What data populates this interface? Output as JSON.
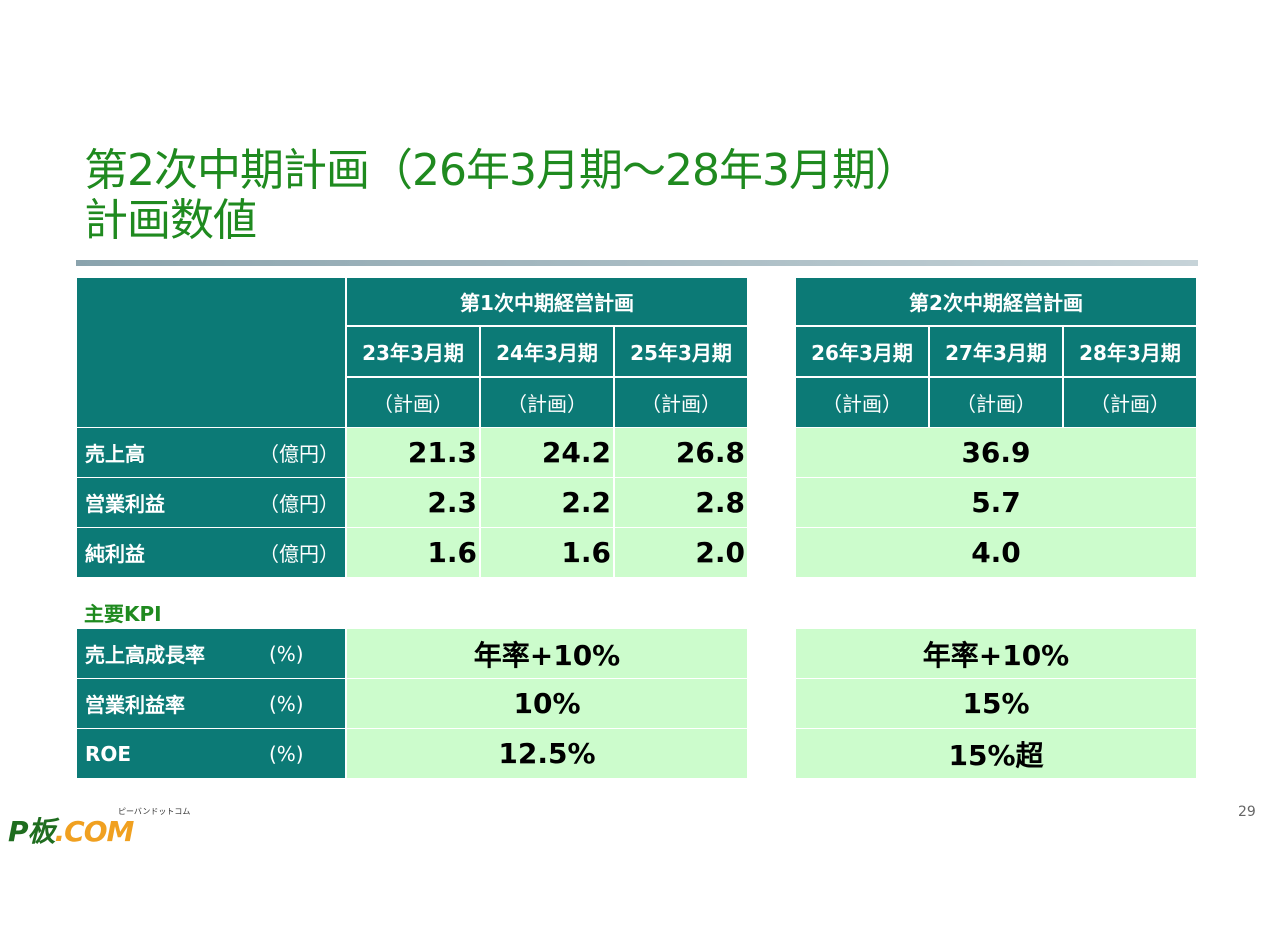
{
  "title": {
    "line1": "第2次中期計画（26年3月期～28年3月期）",
    "line2": "計画数値"
  },
  "plan1": {
    "name": "第1次中期経営計画",
    "periods": [
      "23年3月期",
      "24年3月期",
      "25年3月期"
    ],
    "notes": [
      "（計画）",
      "（計画）",
      "（計画）"
    ]
  },
  "plan2": {
    "name": "第2次中期経営計画",
    "periods": [
      "26年3月期",
      "27年3月期",
      "28年3月期"
    ],
    "notes": [
      "（計画）",
      "（計画）",
      "（計画）"
    ]
  },
  "financials": [
    {
      "label": "売上高",
      "unit": "（億円）",
      "plan1": [
        "21.3",
        "24.2",
        "26.8"
      ],
      "plan2": "36.9"
    },
    {
      "label": "営業利益",
      "unit": "（億円）",
      "plan1": [
        "2.3",
        "2.2",
        "2.8"
      ],
      "plan2": "5.7"
    },
    {
      "label": "純利益",
      "unit": "（億円）",
      "plan1": [
        "1.6",
        "1.6",
        "2.0"
      ],
      "plan2": "4.0"
    }
  ],
  "kpi": {
    "title": "主要KPI",
    "rows": [
      {
        "label": "売上高成長率",
        "unit": "(%)",
        "plan1": "年率+10%",
        "plan2": "年率+10%"
      },
      {
        "label": "営業利益率",
        "unit": "(%)",
        "plan1": "10%",
        "plan2": "15%"
      },
      {
        "label": "ROE",
        "unit": "(%)",
        "plan1": "12.5%",
        "plan2": "15%超"
      }
    ]
  },
  "logo": {
    "main": "P板",
    "com": ".COM",
    "kana": "ピーバンドットコム"
  },
  "page_number": "29",
  "colors": {
    "title": "#1f8a1f",
    "header_bg": "#0c7a76",
    "value_bg": "#ccfccc",
    "kpi_title": "#1f8a1f"
  }
}
